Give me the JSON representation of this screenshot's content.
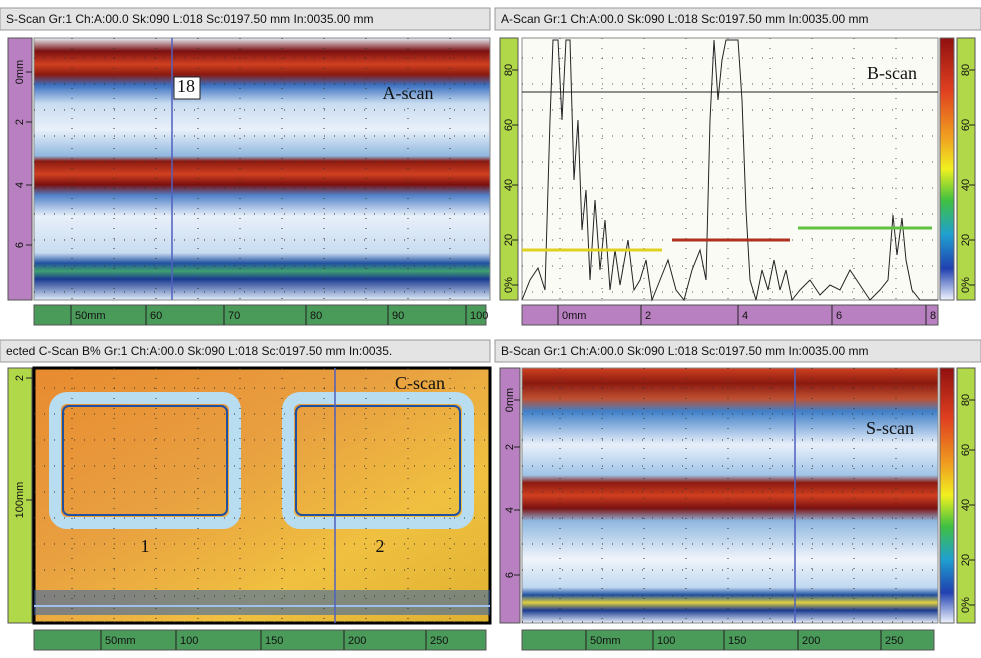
{
  "panels": [
    {
      "header": "S-Scan Gr:1 Ch:A:00.0 Sk:090 L:018 Sc:0197.50 mm In:0035.00 mm",
      "left_ruler": [
        "0mm",
        "2",
        "4",
        "6"
      ],
      "bottom_ruler": [
        "50mm",
        "60",
        "70",
        "80",
        "90",
        "100"
      ],
      "overlays": [
        "18",
        "A-scan"
      ]
    },
    {
      "header": "A-Scan Gr:1 Ch:A:00.0 Sk:090 L:018 Sc:0197.50 mm In:0035.00 mm",
      "left_ruler": [
        "0%",
        "20",
        "40",
        "60",
        "80"
      ],
      "right_ruler": [
        "0%",
        "20",
        "40",
        "60",
        "80"
      ],
      "bottom_ruler": [
        "0mm",
        "2",
        "4",
        "6",
        "8"
      ],
      "overlays": [
        "B-scan"
      ]
    },
    {
      "header": "ected C-Scan B% Gr:1 Ch:A:00.0 Sk:090 L:018 Sc:0197.50 mm In:0035.",
      "left_ruler": [
        "2",
        "100mm"
      ],
      "bottom_ruler": [
        "50mm",
        "100",
        "150",
        "200",
        "250"
      ],
      "overlays": [
        "C-scan",
        "1",
        "2"
      ]
    },
    {
      "header": "B-Scan Gr:1 Ch:A:00.0 Sk:090 L:018 Sc:0197.50 mm In:0035.00 mm",
      "left_ruler": [
        "0mm",
        "2",
        "4",
        "6"
      ],
      "right_ruler": [
        "0%",
        "20",
        "40",
        "60",
        "80"
      ],
      "bottom_ruler": [
        "50mm",
        "100",
        "150",
        "200",
        "250"
      ],
      "overlays": [
        "S-scan"
      ]
    }
  ]
}
